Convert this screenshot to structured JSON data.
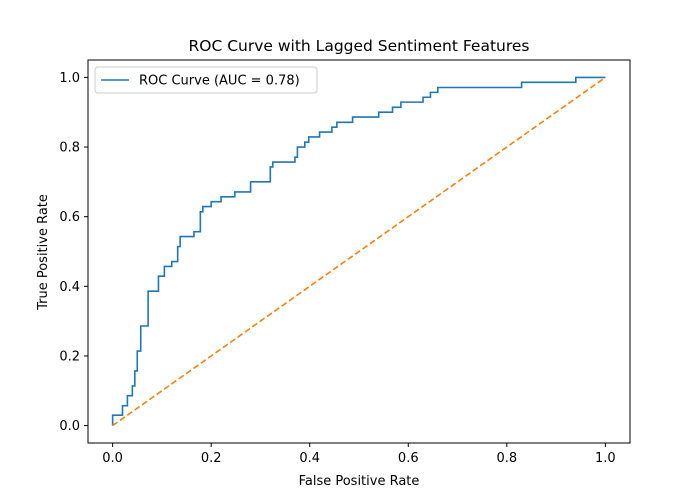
{
  "chart_data": {
    "type": "line",
    "title": "ROC Curve with Lagged Sentiment Features",
    "xlabel": "False Positive Rate",
    "ylabel": "True Positive Rate",
    "xlim": [
      -0.05,
      1.05
    ],
    "ylim": [
      -0.05,
      1.05
    ],
    "xticks": [
      0.0,
      0.2,
      0.4,
      0.6,
      0.8,
      1.0
    ],
    "yticks": [
      0.0,
      0.2,
      0.4,
      0.6,
      0.8,
      1.0
    ],
    "xtick_labels": [
      "0.0",
      "0.2",
      "0.4",
      "0.6",
      "0.8",
      "1.0"
    ],
    "ytick_labels": [
      "0.0",
      "0.2",
      "0.4",
      "0.6",
      "0.8",
      "1.0"
    ],
    "grid": false,
    "legend_position": "upper-left",
    "series": [
      {
        "name": "ROC Curve (AUC = 0.78)",
        "color": "#1f77b4",
        "style": "solid",
        "in_legend": true,
        "points": [
          [
            0.0,
            0.0
          ],
          [
            0.0,
            0.03
          ],
          [
            0.02,
            0.03
          ],
          [
            0.02,
            0.057
          ],
          [
            0.03,
            0.057
          ],
          [
            0.03,
            0.086
          ],
          [
            0.04,
            0.086
          ],
          [
            0.04,
            0.114
          ],
          [
            0.045,
            0.114
          ],
          [
            0.045,
            0.157
          ],
          [
            0.05,
            0.157
          ],
          [
            0.05,
            0.214
          ],
          [
            0.057,
            0.214
          ],
          [
            0.057,
            0.286
          ],
          [
            0.072,
            0.286
          ],
          [
            0.072,
            0.386
          ],
          [
            0.093,
            0.386
          ],
          [
            0.093,
            0.429
          ],
          [
            0.105,
            0.429
          ],
          [
            0.105,
            0.457
          ],
          [
            0.12,
            0.457
          ],
          [
            0.12,
            0.471
          ],
          [
            0.132,
            0.471
          ],
          [
            0.132,
            0.514
          ],
          [
            0.137,
            0.514
          ],
          [
            0.137,
            0.543
          ],
          [
            0.165,
            0.543
          ],
          [
            0.165,
            0.557
          ],
          [
            0.178,
            0.557
          ],
          [
            0.178,
            0.614
          ],
          [
            0.183,
            0.614
          ],
          [
            0.183,
            0.629
          ],
          [
            0.2,
            0.629
          ],
          [
            0.2,
            0.643
          ],
          [
            0.22,
            0.643
          ],
          [
            0.22,
            0.657
          ],
          [
            0.248,
            0.657
          ],
          [
            0.248,
            0.671
          ],
          [
            0.28,
            0.671
          ],
          [
            0.28,
            0.7
          ],
          [
            0.32,
            0.7
          ],
          [
            0.32,
            0.743
          ],
          [
            0.325,
            0.743
          ],
          [
            0.325,
            0.757
          ],
          [
            0.37,
            0.757
          ],
          [
            0.37,
            0.771
          ],
          [
            0.375,
            0.771
          ],
          [
            0.375,
            0.8
          ],
          [
            0.39,
            0.8
          ],
          [
            0.39,
            0.814
          ],
          [
            0.398,
            0.814
          ],
          [
            0.398,
            0.829
          ],
          [
            0.42,
            0.829
          ],
          [
            0.42,
            0.843
          ],
          [
            0.445,
            0.843
          ],
          [
            0.445,
            0.857
          ],
          [
            0.455,
            0.857
          ],
          [
            0.455,
            0.871
          ],
          [
            0.487,
            0.871
          ],
          [
            0.487,
            0.886
          ],
          [
            0.54,
            0.886
          ],
          [
            0.54,
            0.9
          ],
          [
            0.568,
            0.9
          ],
          [
            0.568,
            0.914
          ],
          [
            0.585,
            0.914
          ],
          [
            0.585,
            0.929
          ],
          [
            0.63,
            0.929
          ],
          [
            0.63,
            0.943
          ],
          [
            0.645,
            0.943
          ],
          [
            0.645,
            0.957
          ],
          [
            0.66,
            0.957
          ],
          [
            0.66,
            0.971
          ],
          [
            0.83,
            0.971
          ],
          [
            0.83,
            0.986
          ],
          [
            0.94,
            0.986
          ],
          [
            0.94,
            1.0
          ],
          [
            1.0,
            1.0
          ]
        ]
      },
      {
        "name": "",
        "color": "#ff7f0e",
        "style": "dashed",
        "in_legend": false,
        "points": [
          [
            0.0,
            0.0
          ],
          [
            1.0,
            1.0
          ]
        ]
      }
    ]
  }
}
